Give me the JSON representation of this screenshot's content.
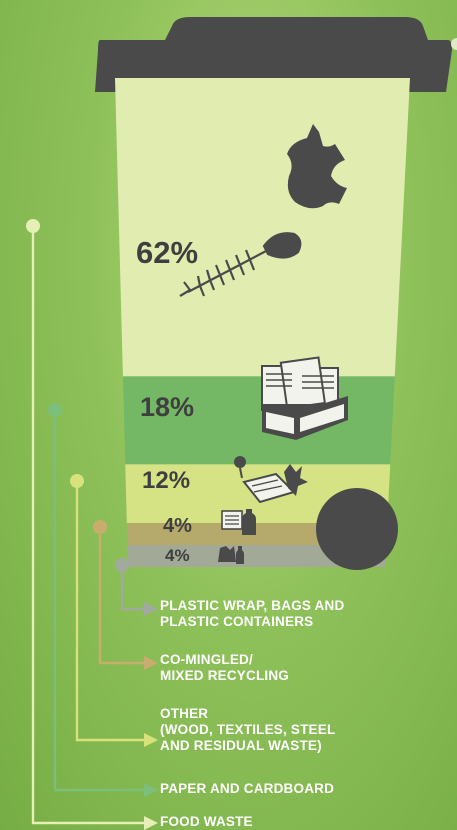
{
  "chart_data": {
    "type": "bar",
    "orientation": "stacked-vertical",
    "categories": [
      "FOOD WASTE",
      "PAPER AND CARDBOARD",
      "OTHER\n(WOOD, TEXTILES, STEEL\nAND RESIDUAL WASTE)",
      "CO-MINGLED/\nMIXED RECYCLING",
      "PLASTIC WRAP, BAGS AND\nPLASTIC CONTAINERS"
    ],
    "values": [
      62,
      18,
      12,
      4,
      4
    ],
    "value_labels": [
      "62%",
      "18%",
      "12%",
      "4%",
      "4%"
    ],
    "unit": "%",
    "colors": [
      "#e1ecb0",
      "#74b866",
      "#d6e384",
      "#b5a96c",
      "#a2a996"
    ],
    "leader_colors": [
      "#e6efb6",
      "#7cbf7a",
      "#d8e27c",
      "#c9ad6e",
      "#a2a99d"
    ],
    "icons": [
      "apple-core-icon",
      "fish-bone-icon",
      "newspaper-box-icon",
      "lightbulb-book-leaves-icon",
      "paper-bottle-icon",
      "bag-bottle-icon"
    ],
    "bin_lid_color": "#4a4a4a",
    "wheel_color": "#4a4a4a"
  }
}
